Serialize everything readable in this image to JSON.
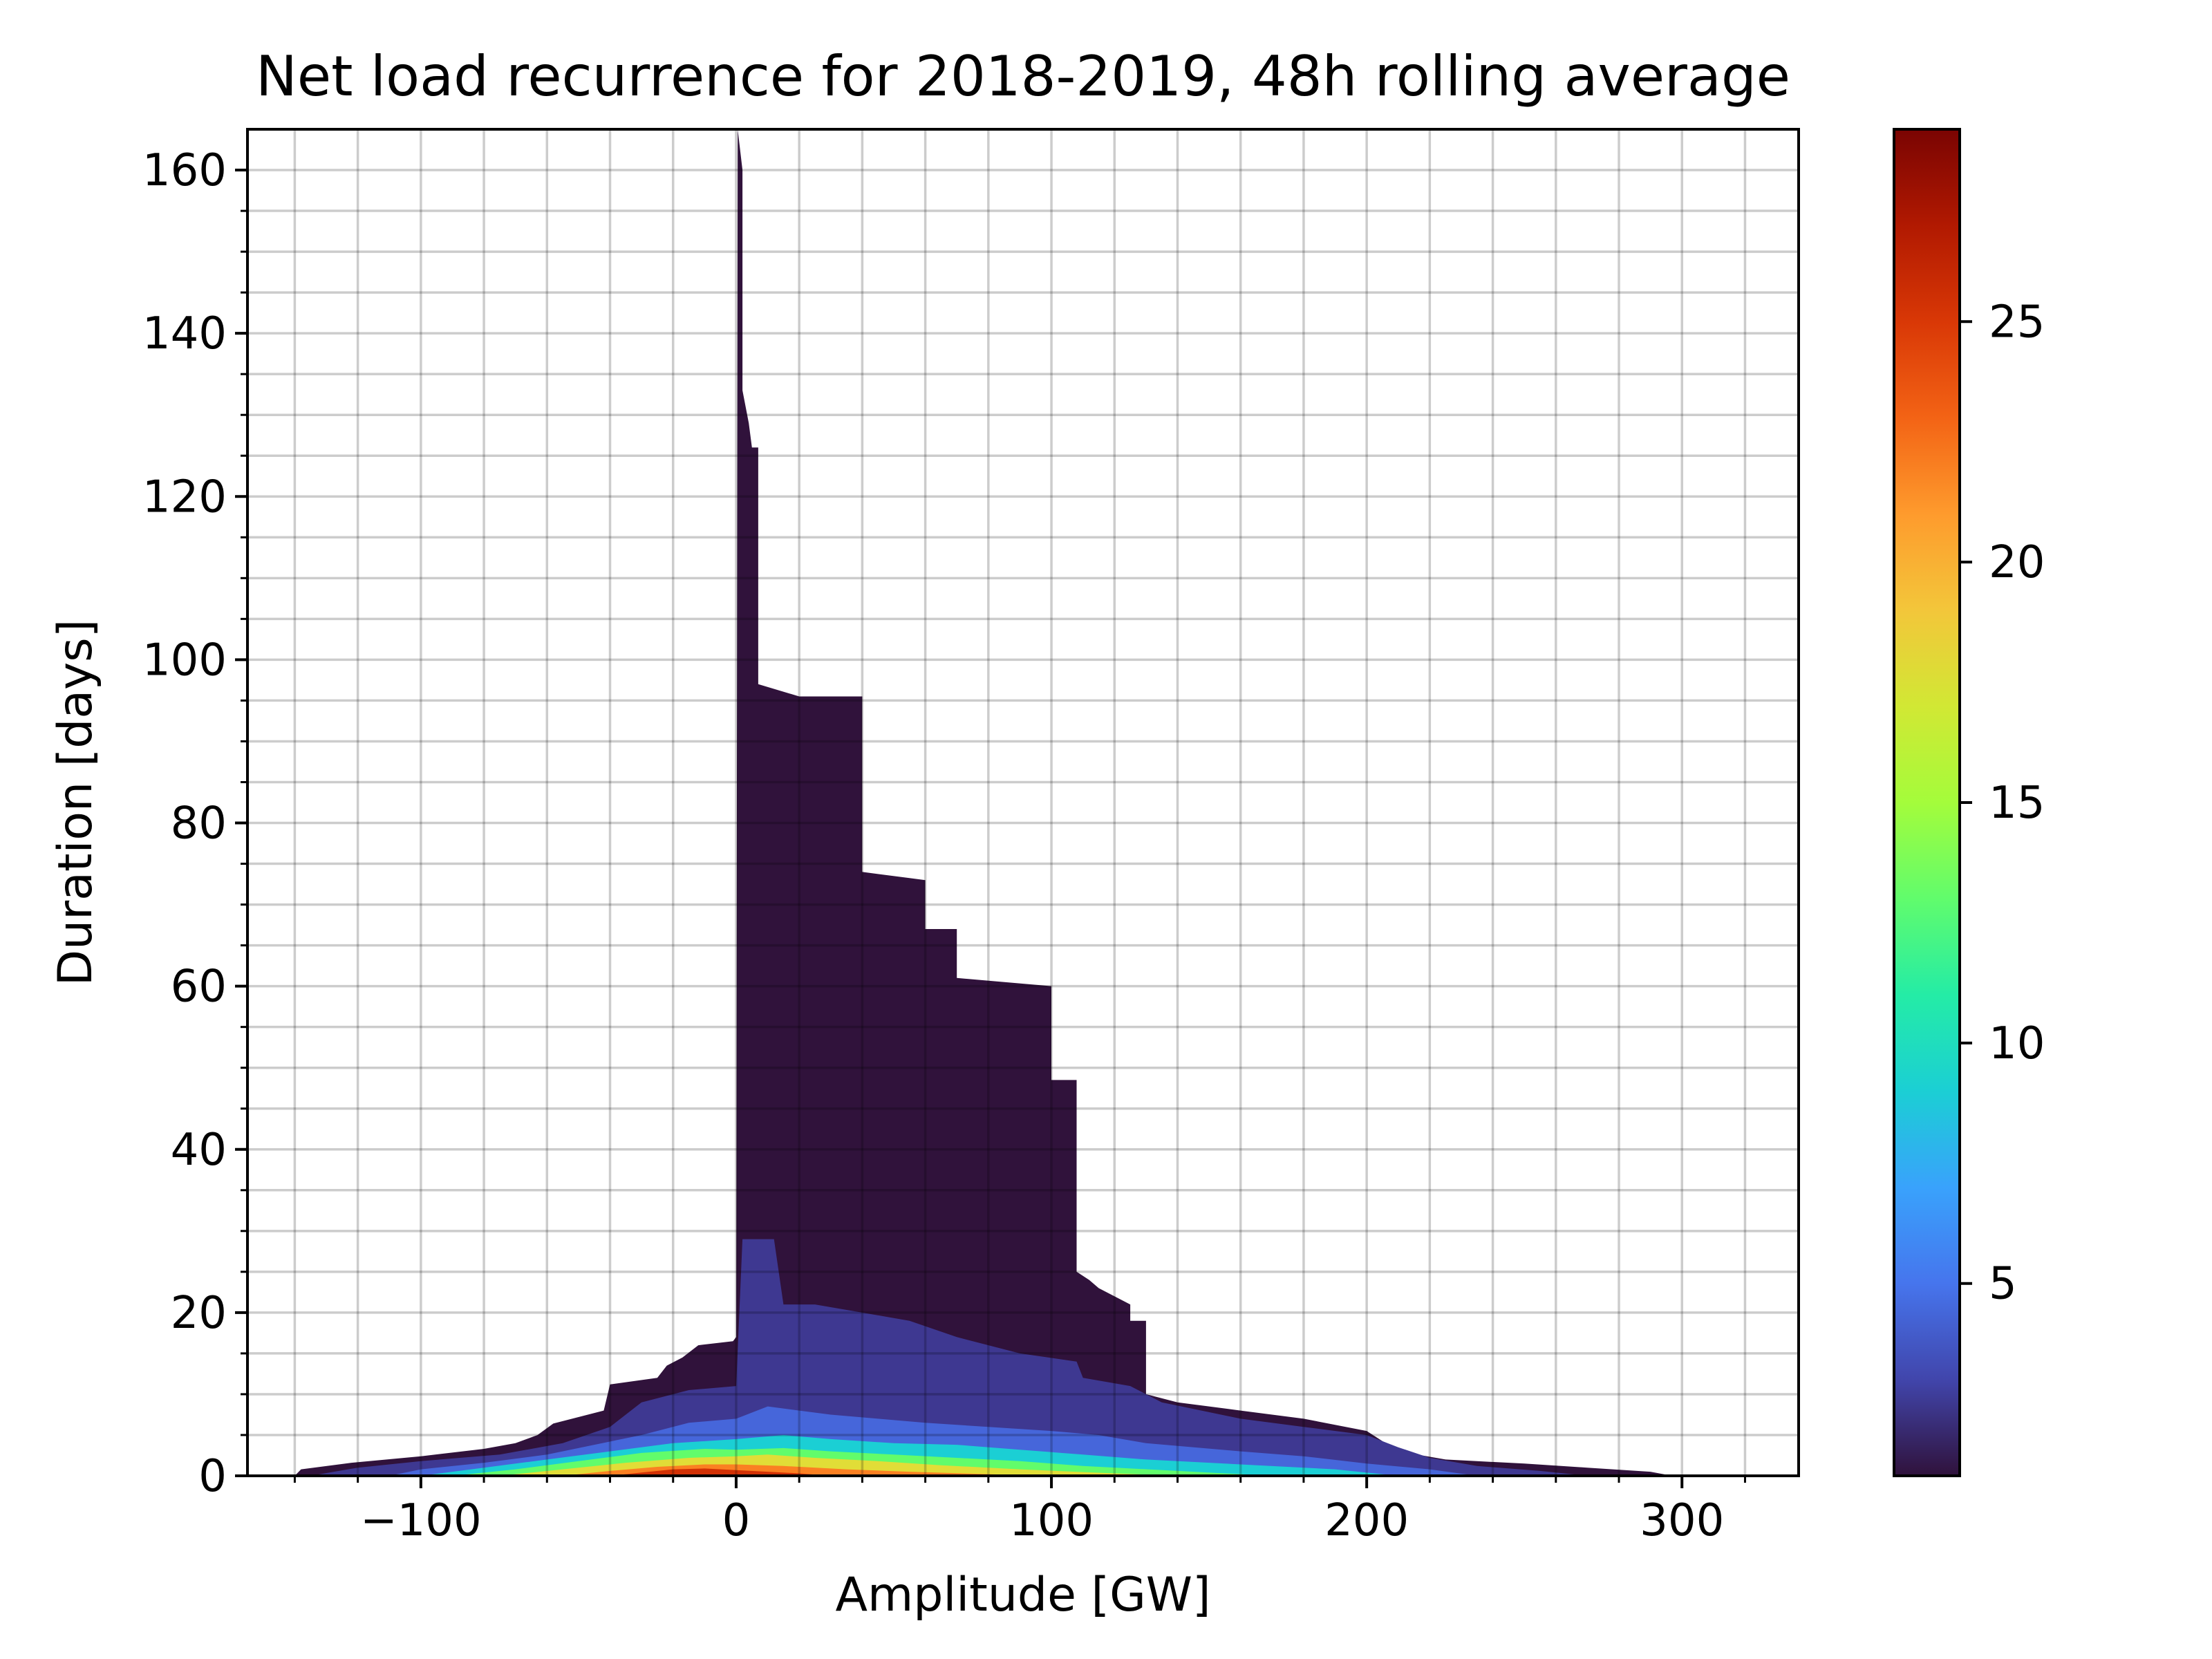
{
  "chart_data": {
    "type": "heatmap",
    "title": "Net load recurrence for 2018-2019, 48h rolling average",
    "xlabel": "Amplitude [GW]",
    "ylabel": "Duration [days]",
    "xlim": [
      -155,
      337
    ],
    "ylim": [
      0,
      165
    ],
    "xticks": [
      -100,
      0,
      100,
      200,
      300
    ],
    "xtick_labels": [
      "−100",
      "0",
      "100",
      "200",
      "300"
    ],
    "yticks": [
      0,
      20,
      40,
      60,
      80,
      100,
      120,
      140,
      160
    ],
    "ytick_labels": [
      "0",
      "20",
      "40",
      "60",
      "80",
      "100",
      "120",
      "140",
      "160"
    ],
    "grid": true,
    "colorbar": {
      "range": [
        1,
        29
      ],
      "ticks": [
        5,
        10,
        15,
        20,
        25
      ],
      "tick_labels": [
        "5",
        "10",
        "15",
        "20",
        "25"
      ],
      "colormap": "turbo"
    },
    "levels": [
      {
        "value": 1,
        "color": "#30123b",
        "profile": [
          [
            -140,
            0
          ],
          [
            -138,
            0.8
          ],
          [
            -122,
            1.6
          ],
          [
            -100,
            2.4
          ],
          [
            -80,
            3.3
          ],
          [
            -70,
            4.0
          ],
          [
            -63,
            5.0
          ],
          [
            -58,
            6.4
          ],
          [
            -42,
            8.0
          ],
          [
            -40,
            11.2
          ],
          [
            -25,
            12.0
          ],
          [
            -22,
            13.5
          ],
          [
            -17,
            14.5
          ],
          [
            -12,
            16.0
          ],
          [
            -1,
            16.5
          ],
          [
            0,
            17.0
          ],
          [
            0.5,
            165
          ],
          [
            2,
            160
          ],
          [
            2,
            133
          ],
          [
            4,
            129
          ],
          [
            5,
            126
          ],
          [
            7,
            126
          ],
          [
            7,
            97
          ],
          [
            20,
            95.5
          ],
          [
            40,
            95.5
          ],
          [
            40,
            74
          ],
          [
            60,
            73
          ],
          [
            60,
            67
          ],
          [
            70,
            67
          ],
          [
            70,
            61
          ],
          [
            100,
            60
          ],
          [
            100,
            48.5
          ],
          [
            108,
            48.5
          ],
          [
            108,
            25
          ],
          [
            112,
            24
          ],
          [
            115,
            23
          ],
          [
            125,
            21
          ],
          [
            125,
            19
          ],
          [
            130,
            19
          ],
          [
            130,
            10
          ],
          [
            140,
            9
          ],
          [
            160,
            8
          ],
          [
            180,
            7
          ],
          [
            200,
            5.5
          ],
          [
            210,
            3.0
          ],
          [
            225,
            2.0
          ],
          [
            250,
            1.5
          ],
          [
            270,
            1.0
          ],
          [
            290,
            0.5
          ],
          [
            297,
            0
          ]
        ]
      },
      {
        "value": 4,
        "color": "#3e3891",
        "profile": [
          [
            -135,
            0
          ],
          [
            -120,
            1.0
          ],
          [
            -100,
            1.8
          ],
          [
            -75,
            2.6
          ],
          [
            -55,
            4.0
          ],
          [
            -40,
            6.0
          ],
          [
            -30,
            9.0
          ],
          [
            -15,
            10.5
          ],
          [
            0,
            11.0
          ],
          [
            2,
            29
          ],
          [
            12,
            29
          ],
          [
            15,
            21
          ],
          [
            25,
            21
          ],
          [
            40,
            20
          ],
          [
            55,
            19
          ],
          [
            70,
            17
          ],
          [
            90,
            15
          ],
          [
            108,
            14
          ],
          [
            110,
            12
          ],
          [
            125,
            11
          ],
          [
            135,
            9
          ],
          [
            160,
            7
          ],
          [
            180,
            6
          ],
          [
            200,
            5
          ],
          [
            210,
            3.5
          ],
          [
            220,
            2.2
          ],
          [
            235,
            1.2
          ],
          [
            255,
            0.6
          ],
          [
            270,
            0
          ]
        ]
      },
      {
        "value": 6,
        "color": "#4666da",
        "profile": [
          [
            -110,
            0
          ],
          [
            -100,
            0.8
          ],
          [
            -80,
            1.6
          ],
          [
            -60,
            2.6
          ],
          [
            -45,
            3.8
          ],
          [
            -30,
            5.0
          ],
          [
            -15,
            6.5
          ],
          [
            0,
            7.0
          ],
          [
            10,
            8.5
          ],
          [
            20,
            8.0
          ],
          [
            30,
            7.5
          ],
          [
            45,
            7.0
          ],
          [
            60,
            6.5
          ],
          [
            80,
            6.0
          ],
          [
            100,
            5.5
          ],
          [
            115,
            5.0
          ],
          [
            130,
            4.0
          ],
          [
            160,
            3.0
          ],
          [
            180,
            2.4
          ],
          [
            200,
            1.5
          ],
          [
            220,
            0.8
          ],
          [
            235,
            0
          ]
        ]
      },
      {
        "value": 9,
        "color": "#1bcfd4",
        "profile": [
          [
            -100,
            0
          ],
          [
            -80,
            1.0
          ],
          [
            -60,
            2.0
          ],
          [
            -40,
            3.0
          ],
          [
            -20,
            4.0
          ],
          [
            0,
            4.5
          ],
          [
            15,
            5.0
          ],
          [
            30,
            4.5
          ],
          [
            50,
            4.0
          ],
          [
            70,
            3.8
          ],
          [
            90,
            3.2
          ],
          [
            110,
            2.6
          ],
          [
            130,
            2.0
          ],
          [
            160,
            1.4
          ],
          [
            190,
            0.8
          ],
          [
            210,
            0
          ]
        ]
      },
      {
        "value": 13,
        "color": "#62fc6b",
        "profile": [
          [
            -90,
            0
          ],
          [
            -70,
            0.8
          ],
          [
            -50,
            1.8
          ],
          [
            -30,
            2.8
          ],
          [
            -10,
            3.3
          ],
          [
            0,
            3.2
          ],
          [
            15,
            3.4
          ],
          [
            30,
            3.0
          ],
          [
            50,
            2.6
          ],
          [
            70,
            2.2
          ],
          [
            90,
            1.8
          ],
          [
            110,
            1.2
          ],
          [
            140,
            0.6
          ],
          [
            170,
            0
          ]
        ]
      },
      {
        "value": 18,
        "color": "#e1dd37",
        "profile": [
          [
            -75,
            0
          ],
          [
            -55,
            0.8
          ],
          [
            -35,
            1.6
          ],
          [
            -15,
            2.2
          ],
          [
            0,
            2.4
          ],
          [
            10,
            2.6
          ],
          [
            25,
            2.2
          ],
          [
            45,
            1.8
          ],
          [
            65,
            1.3
          ],
          [
            90,
            0.8
          ],
          [
            120,
            0.3
          ],
          [
            140,
            0
          ]
        ]
      },
      {
        "value": 22,
        "color": "#fb8022",
        "profile": [
          [
            -55,
            0
          ],
          [
            -40,
            0.6
          ],
          [
            -25,
            1.1
          ],
          [
            -10,
            1.4
          ],
          [
            0,
            1.4
          ],
          [
            15,
            1.2
          ],
          [
            35,
            0.8
          ],
          [
            55,
            0.5
          ],
          [
            80,
            0.2
          ],
          [
            95,
            0
          ]
        ]
      },
      {
        "value": 26,
        "color": "#d23105",
        "profile": [
          [
            -40,
            0
          ],
          [
            -30,
            0.4
          ],
          [
            -20,
            0.8
          ],
          [
            -10,
            0.9
          ],
          [
            0,
            0.7
          ],
          [
            10,
            0.5
          ],
          [
            20,
            0.3
          ],
          [
            30,
            0
          ]
        ]
      }
    ]
  }
}
